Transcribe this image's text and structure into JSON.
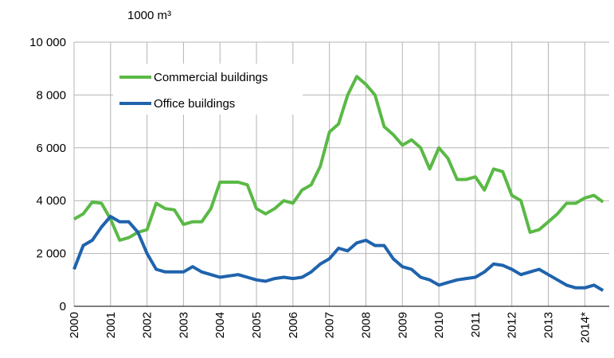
{
  "chart_data": {
    "type": "line",
    "y_label": "1000 m³",
    "x": [
      2000,
      2000.25,
      2000.5,
      2000.75,
      2001,
      2001.25,
      2001.5,
      2001.75,
      2002,
      2002.25,
      2002.5,
      2002.75,
      2003,
      2003.25,
      2003.5,
      2003.75,
      2004,
      2004.25,
      2004.5,
      2004.75,
      2005,
      2005.25,
      2005.5,
      2005.75,
      2006,
      2006.25,
      2006.5,
      2006.75,
      2007,
      2007.25,
      2007.5,
      2007.75,
      2008,
      2008.25,
      2008.5,
      2008.75,
      2009,
      2009.25,
      2009.5,
      2009.75,
      2010,
      2010.25,
      2010.5,
      2010.75,
      2011,
      2011.25,
      2011.5,
      2011.75,
      2012,
      2012.25,
      2012.5,
      2012.75,
      2013,
      2013.25,
      2013.5,
      2013.75,
      2014,
      2014.25,
      2014.5
    ],
    "series": [
      {
        "name": "Commercial buildings",
        "color": "#5ab946",
        "values": [
          3300,
          3500,
          3950,
          3900,
          3300,
          2500,
          2600,
          2800,
          2900,
          3900,
          3700,
          3650,
          3100,
          3200,
          3200,
          3700,
          4700,
          4700,
          4700,
          4600,
          3700,
          3500,
          3700,
          4000,
          3900,
          4400,
          4600,
          5300,
          6600,
          6900,
          8000,
          8700,
          8400,
          8000,
          6800,
          6500,
          6100,
          6300,
          6000,
          5200,
          6000,
          5600,
          4800,
          4800,
          4900,
          4400,
          5200,
          5100,
          4200,
          4000,
          2800,
          2900,
          3200,
          3500,
          3900,
          3900,
          4100,
          4200,
          3950
        ]
      },
      {
        "name": "Office buildings",
        "color": "#1f63ad",
        "values": [
          1400,
          2300,
          2500,
          3000,
          3400,
          3200,
          3200,
          2800,
          2000,
          1400,
          1300,
          1300,
          1300,
          1500,
          1300,
          1200,
          1100,
          1150,
          1200,
          1100,
          1000,
          950,
          1050,
          1100,
          1050,
          1100,
          1300,
          1600,
          1800,
          2200,
          2100,
          2400,
          2500,
          2300,
          2300,
          1800,
          1500,
          1400,
          1100,
          1000,
          800,
          900,
          1000,
          1050,
          1100,
          1300,
          1600,
          1550,
          1400,
          1200,
          1300,
          1400,
          1200,
          1000,
          800,
          700,
          700,
          800,
          600
        ]
      }
    ],
    "xlim": [
      2000,
      2014.67
    ],
    "xticks": [
      2000,
      2001,
      2002,
      2003,
      2004,
      2005,
      2006,
      2007,
      2008,
      2009,
      2010,
      2011,
      2012,
      2013,
      {
        "value": 2014,
        "label": "2014*"
      }
    ],
    "ylim": [
      0,
      10000
    ],
    "yticks": [
      0,
      {
        "value": 2000,
        "label": "2 000"
      },
      {
        "value": 4000,
        "label": "4 000"
      },
      {
        "value": 6000,
        "label": "6 000"
      },
      {
        "value": 8000,
        "label": "8 000"
      },
      {
        "value": 10000,
        "label": "10 000"
      }
    ],
    "grid": true
  }
}
